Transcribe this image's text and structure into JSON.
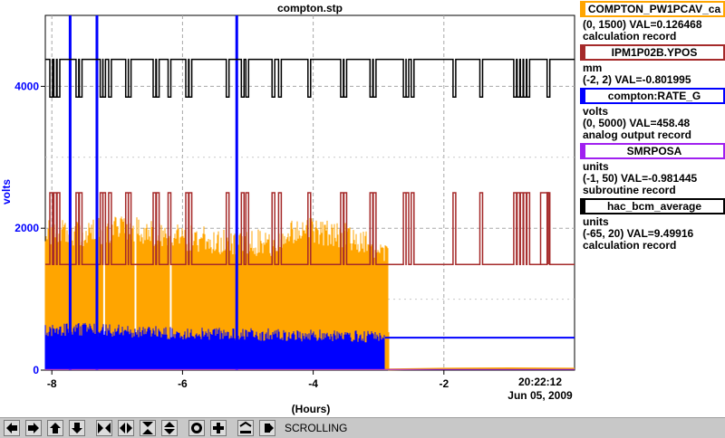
{
  "window": {
    "title": "compton.stp"
  },
  "colors": {
    "compton_pw1pcav": "#ffa500",
    "ipm1p02b_ypos": "#a52a2a",
    "compton_rate_g": "#0000ff",
    "smrposa": "#a020f0",
    "hac_bcm_average": "#000000"
  },
  "legend": [
    {
      "name": "COMPTON_PW1PCAV_ca",
      "units": "",
      "range_val": "(0, 1500) VAL=0.126468",
      "record": "calculation record",
      "color": "#ffa500"
    },
    {
      "name": "IPM1P02B.YPOS",
      "units": "mm",
      "range_val": "(-2, 2) VAL=-0.801995",
      "record": "",
      "color": "#a52a2a"
    },
    {
      "name": "compton:RATE_G",
      "units": "volts",
      "range_val": "(0, 5000) VAL=458.48",
      "record": "analog output record",
      "color": "#0000ff"
    },
    {
      "name": "SMRPOSA",
      "units": "units",
      "range_val": "(-1, 50) VAL=-0.981445",
      "record": "subroutine record",
      "color": "#a020f0"
    },
    {
      "name": "hac_bcm_average",
      "units": "units",
      "range_val": "(-65, 20) VAL=9.49916",
      "record": "calculation record",
      "color": "#000000"
    }
  ],
  "chart_data": {
    "type": "line",
    "title": "compton.stp",
    "xlabel": "(Hours)",
    "ylabel": "volts",
    "xlim": [
      -8.1,
      0.0
    ],
    "ylim": [
      0,
      5000
    ],
    "x_ticks": [
      -8,
      -6,
      -4,
      -2
    ],
    "x_tick_labels": [
      "-8",
      "-6",
      "-4",
      "-2"
    ],
    "y_ticks": [
      0,
      2000,
      4000
    ],
    "y_tick_labels": [
      "0",
      "2000",
      "4000"
    ],
    "end_time": "20:22:12",
    "end_date": "Jun 05, 2009",
    "grid": true,
    "series": [
      {
        "name": "COMPTON_PW1PCAV_ca",
        "color": "#ffa500",
        "display_range": [
          0,
          1500
        ],
        "points": [
          [
            -8.1,
            2120
          ],
          [
            -7.5,
            2110
          ],
          [
            -7.0,
            2190
          ],
          [
            -6.5,
            2140
          ],
          [
            -6.0,
            2060
          ],
          [
            -5.5,
            2010
          ],
          [
            -5.0,
            1990
          ],
          [
            -4.5,
            1980
          ],
          [
            -4.3,
            2150
          ],
          [
            -4.0,
            2160
          ],
          [
            -3.5,
            2080
          ],
          [
            -3.2,
            1970
          ],
          [
            -2.85,
            1880
          ],
          [
            -2.84,
            10
          ],
          [
            -2.0,
            20
          ],
          [
            -1.0,
            25
          ],
          [
            0.0,
            20
          ]
        ]
      },
      {
        "name": "IPM1P02B.YPOS",
        "color": "#a52a2a",
        "display_range": [
          -2,
          2
        ],
        "points": [
          [
            -8.1,
            1490
          ],
          [
            -6.0,
            1500
          ],
          [
            -4.0,
            1500
          ],
          [
            -2.0,
            1495
          ],
          [
            0.0,
            1490
          ]
        ],
        "spike_level": 2500,
        "spikes_x": [
          -8.03,
          -7.97,
          -7.92,
          -7.63,
          -7.58,
          -7.26,
          -7.22,
          -7.13,
          -6.87,
          -6.83,
          -6.45,
          -6.4,
          -6.22,
          -5.95,
          -5.9,
          -5.33,
          -5.1,
          -5.03,
          -4.63,
          -4.53,
          -4.08,
          -3.58,
          -3.53,
          -3.13,
          -3.08,
          -2.62,
          -2.58,
          -2.5,
          -1.86,
          -1.45,
          -0.93,
          -0.88,
          -0.83,
          -0.78,
          -0.73,
          -0.42
        ]
      },
      {
        "name": "compton:RATE_G",
        "color": "#0000ff",
        "display_range": [
          0,
          5000
        ],
        "points": [
          [
            -8.1,
            530
          ],
          [
            -7.5,
            540
          ],
          [
            -7.0,
            520
          ],
          [
            -6.5,
            500
          ],
          [
            -6.0,
            470
          ],
          [
            -5.5,
            480
          ],
          [
            -5.0,
            470
          ],
          [
            -4.5,
            460
          ],
          [
            -4.0,
            450
          ],
          [
            -3.5,
            440
          ],
          [
            -3.0,
            430
          ],
          [
            -2.9,
            458
          ],
          [
            0.0,
            458
          ]
        ],
        "spikes": [
          [
            -7.72,
            5000
          ],
          [
            -7.31,
            5000
          ],
          [
            -5.17,
            5000
          ]
        ]
      },
      {
        "name": "SMRPOSA",
        "color": "#a020f0",
        "display_range": [
          -1,
          50
        ],
        "points": [
          [
            -8.1,
            10
          ],
          [
            0.0,
            10
          ]
        ]
      },
      {
        "name": "hac_bcm_average",
        "color": "#000000",
        "display_range": [
          -65,
          20
        ],
        "points": [
          [
            -8.1,
            4380
          ],
          [
            -4.0,
            4390
          ],
          [
            0.0,
            4400
          ]
        ],
        "dip_level": 3850,
        "dips_x": [
          -8.03,
          -7.97,
          -7.92,
          -7.63,
          -7.58,
          -7.26,
          -7.22,
          -7.13,
          -6.87,
          -6.83,
          -6.45,
          -6.4,
          -6.22,
          -5.95,
          -5.9,
          -5.33,
          -5.1,
          -5.03,
          -4.63,
          -4.53,
          -4.08,
          -3.58,
          -3.53,
          -3.13,
          -3.08,
          -2.62,
          -2.58,
          -2.5,
          -1.86,
          -1.45,
          -0.93,
          -0.88,
          -0.83,
          -0.78,
          -0.73,
          -0.42
        ]
      }
    ]
  },
  "toolbar": {
    "status": "SCROLLING",
    "buttons": [
      "pan-left",
      "pan-right",
      "pan-up",
      "pan-down",
      "zoom-in-x",
      "zoom-out-x",
      "zoom-in-y",
      "zoom-out-y",
      "auto-scale",
      "zoom-default",
      "config",
      "stop"
    ]
  }
}
